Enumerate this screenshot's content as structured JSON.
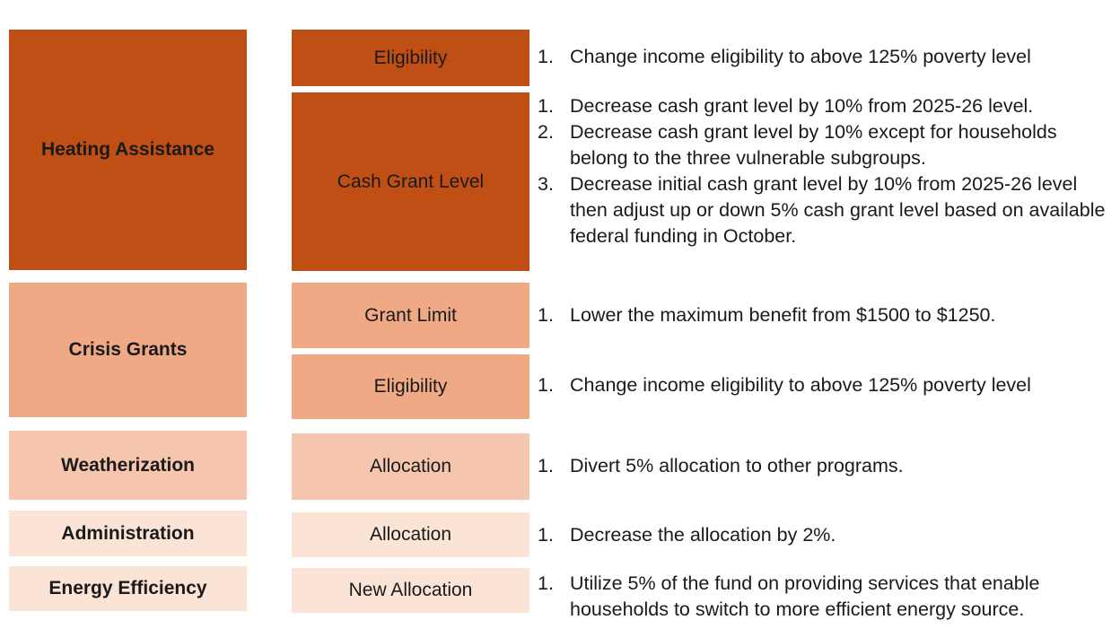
{
  "categories": [
    {
      "label": "Heating Assistance",
      "color": "#c04f15"
    },
    {
      "label": "Crisis Grants",
      "color": "#f0a985"
    },
    {
      "label": "Weatherization",
      "color": "#f5c6ad"
    },
    {
      "label": "Administration",
      "color": "#fbe3d6"
    },
    {
      "label": "Energy Efficiency",
      "color": "#fbe3d6"
    }
  ],
  "levers": [
    {
      "label": "Eligibility",
      "options": [
        {
          "num": "1.",
          "text": "Change income eligibility to above 125% poverty level"
        }
      ]
    },
    {
      "label": "Cash Grant Level",
      "options": [
        {
          "num": "1.",
          "text": "Decrease cash grant level by 10% from 2025-26 level."
        },
        {
          "num": "2.",
          "text": "Decrease cash grant level by 10% except for households belong to the three vulnerable subgroups."
        },
        {
          "num": "3.",
          "text": "Decrease initial cash grant level by 10% from 2025-26 level then adjust up or down 5% cash grant level based on available federal funding in October."
        }
      ]
    },
    {
      "label": "Grant Limit",
      "options": [
        {
          "num": "1.",
          "text": "Lower the maximum benefit from $1500 to $1250."
        }
      ]
    },
    {
      "label": "Eligibility",
      "options": [
        {
          "num": "1.",
          "text": "Change income eligibility to above 125% poverty level"
        }
      ]
    },
    {
      "label": "Allocation",
      "options": [
        {
          "num": "1.",
          "text": "Divert 5% allocation to other programs."
        }
      ]
    },
    {
      "label": "Allocation",
      "options": [
        {
          "num": "1.",
          "text": "Decrease the allocation by 2%."
        }
      ]
    },
    {
      "label": "New Allocation",
      "options": [
        {
          "num": "1.",
          "text": "Utilize 5% of the fund on providing services that enable households to switch to more efficient energy source."
        }
      ]
    }
  ]
}
